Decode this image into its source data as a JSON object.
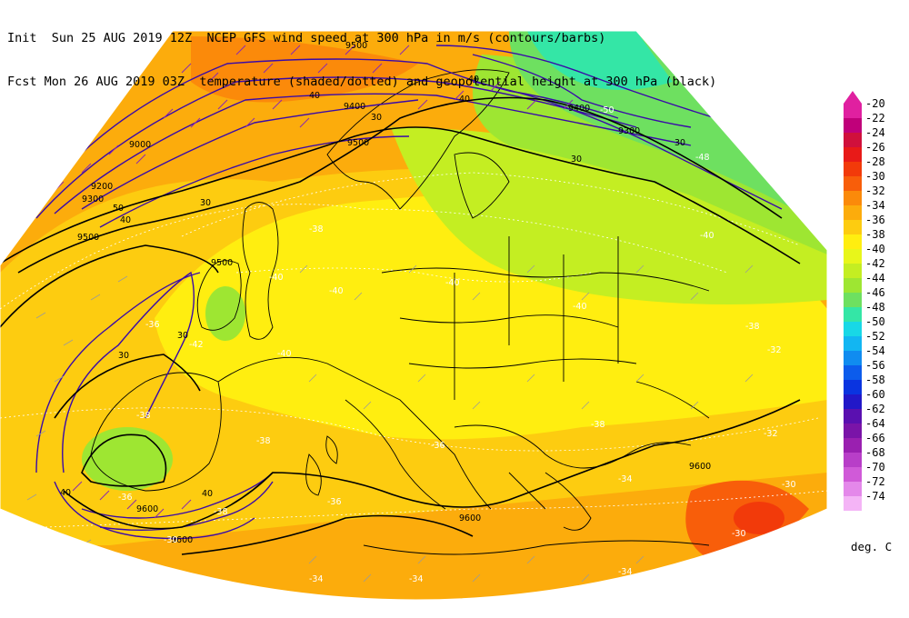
{
  "header": {
    "line1": "Init  Sun 25 AUG 2019 12Z  NCEP GFS wind speed at 300 hPa in m/s (contours/barbs)",
    "line2": "Fcst Mon 26 AUG 2019 03Z  temperature (shaded/dotted) and geopotential height at 300 hPa (black)"
  },
  "legend": {
    "unit": "deg. C",
    "levels": [
      {
        "label": "-20",
        "color": "#e020a0"
      },
      {
        "label": "-22",
        "color": "#c0007a"
      },
      {
        "label": "-24",
        "color": "#d0103c"
      },
      {
        "label": "-26",
        "color": "#e81a18"
      },
      {
        "label": "-28",
        "color": "#f23a0a"
      },
      {
        "label": "-30",
        "color": "#f85e0a"
      },
      {
        "label": "-32",
        "color": "#fb8a0a"
      },
      {
        "label": "-34",
        "color": "#fcac0c"
      },
      {
        "label": "-36",
        "color": "#fdcc10"
      },
      {
        "label": "-38",
        "color": "#ffee10"
      },
      {
        "label": "-40",
        "color": "#e8f61a"
      },
      {
        "label": "-42",
        "color": "#c4ee22"
      },
      {
        "label": "-44",
        "color": "#9ee632"
      },
      {
        "label": "-46",
        "color": "#6ee060"
      },
      {
        "label": "-48",
        "color": "#34e6a6"
      },
      {
        "label": "-50",
        "color": "#18d8e6"
      },
      {
        "label": "-52",
        "color": "#12b6f2"
      },
      {
        "label": "-54",
        "color": "#108cf0"
      },
      {
        "label": "-56",
        "color": "#0c5cec"
      },
      {
        "label": "-58",
        "color": "#0a34e0"
      },
      {
        "label": "-60",
        "color": "#2218c8"
      },
      {
        "label": "-62",
        "color": "#5a10b0"
      },
      {
        "label": "-64",
        "color": "#7a14a8"
      },
      {
        "label": "-66",
        "color": "#9a20b0"
      },
      {
        "label": "-68",
        "color": "#b83ec8"
      },
      {
        "label": "-70",
        "color": "#d05ad8"
      },
      {
        "label": "-72",
        "color": "#e488ea"
      },
      {
        "label": "-74",
        "color": "#f4b4f6"
      }
    ]
  },
  "colors": {
    "height_contour": "#000000",
    "wind_contour": "#3a0aa8",
    "temperature_dotted": "#ffffff",
    "coastline": "#000000"
  },
  "map_labels": {
    "temperature": [
      "-34",
      "-36",
      "-38",
      "-40",
      "-42",
      "-32",
      "-30",
      "-36",
      "-38",
      "-40",
      "-40",
      "-40",
      "-34",
      "-38",
      "-36",
      "-34",
      "-34",
      "-36",
      "-38",
      "-32",
      "-30",
      "-30",
      "-40",
      "-38",
      "-38",
      "-40",
      "-50",
      "-48"
    ],
    "height": [
      "9500",
      "9400",
      "9200",
      "9000",
      "9300",
      "9500",
      "9500",
      "9400",
      "9500",
      "9300",
      "9600",
      "9600",
      "9600",
      "9600"
    ],
    "wind": [
      "30",
      "40",
      "50",
      "40",
      "30",
      "30",
      "40",
      "40",
      "30",
      "30",
      "40",
      "30",
      "40"
    ]
  }
}
